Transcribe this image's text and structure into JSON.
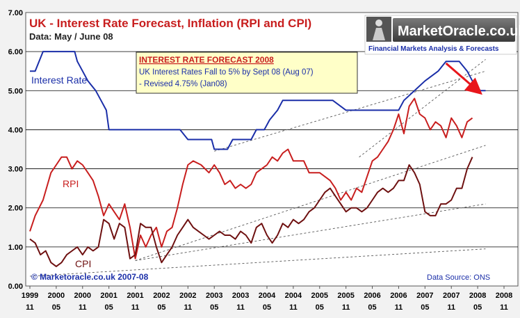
{
  "chart_data": {
    "type": "line",
    "title": "UK - Interest Rate Forecast, Inflation (RPI and CPI)",
    "subtitle": "Data: May / June 08",
    "ylim": [
      0,
      7
    ],
    "y_ticks": [
      "0.00",
      "1.00",
      "2.00",
      "3.00",
      "4.00",
      "5.00",
      "6.00",
      "7.00"
    ],
    "x_ticks": [
      {
        "top": "1999",
        "bottom": "11"
      },
      {
        "top": "2000",
        "bottom": "05"
      },
      {
        "top": "2000",
        "bottom": "11"
      },
      {
        "top": "2001",
        "bottom": "05"
      },
      {
        "top": "2001",
        "bottom": "11"
      },
      {
        "top": "2002",
        "bottom": "05"
      },
      {
        "top": "2002",
        "bottom": "11"
      },
      {
        "top": "2003",
        "bottom": "05"
      },
      {
        "top": "2003",
        "bottom": "11"
      },
      {
        "top": "2004",
        "bottom": "05"
      },
      {
        "top": "2004",
        "bottom": "11"
      },
      {
        "top": "2005",
        "bottom": "05"
      },
      {
        "top": "2005",
        "bottom": "11"
      },
      {
        "top": "2006",
        "bottom": "05"
      },
      {
        "top": "2006",
        "bottom": "11"
      },
      {
        "top": "2007",
        "bottom": "05"
      },
      {
        "top": "2007",
        "bottom": "11"
      },
      {
        "top": "2008",
        "bottom": "05"
      },
      {
        "top": "2008",
        "bottom": "11"
      }
    ],
    "grid": "horizontal",
    "series": [
      {
        "name": "Interest Rate",
        "color": "#1a2ea8",
        "points": [
          [
            0,
            5.5
          ],
          [
            0.2,
            5.5
          ],
          [
            0.5,
            6.0
          ],
          [
            1.7,
            6.0
          ],
          [
            1.8,
            5.75
          ],
          [
            2.0,
            5.5
          ],
          [
            2.2,
            5.25
          ],
          [
            2.5,
            5.0
          ],
          [
            2.7,
            4.75
          ],
          [
            2.9,
            4.5
          ],
          [
            3.0,
            4.0
          ],
          [
            5.7,
            4.0
          ],
          [
            6.0,
            3.75
          ],
          [
            6.9,
            3.75
          ],
          [
            7.0,
            3.5
          ],
          [
            7.5,
            3.5
          ],
          [
            7.7,
            3.75
          ],
          [
            8.4,
            3.75
          ],
          [
            8.6,
            4.0
          ],
          [
            8.9,
            4.0
          ],
          [
            9.1,
            4.25
          ],
          [
            9.4,
            4.5
          ],
          [
            9.6,
            4.75
          ],
          [
            11.0,
            4.75
          ],
          [
            11.5,
            4.75
          ],
          [
            12.0,
            4.5
          ],
          [
            14.0,
            4.5
          ],
          [
            14.2,
            4.75
          ],
          [
            14.6,
            5.0
          ],
          [
            15.0,
            5.25
          ],
          [
            15.5,
            5.5
          ],
          [
            15.8,
            5.75
          ],
          [
            16.3,
            5.75
          ],
          [
            16.6,
            5.5
          ],
          [
            16.8,
            5.25
          ],
          [
            17.1,
            5.0
          ],
          [
            17.3,
            5.0
          ]
        ]
      },
      {
        "name": "RPI",
        "color": "#c81e1e",
        "points": [
          [
            0,
            1.4
          ],
          [
            0.2,
            1.8
          ],
          [
            0.5,
            2.2
          ],
          [
            0.8,
            2.9
          ],
          [
            1.0,
            3.1
          ],
          [
            1.2,
            3.3
          ],
          [
            1.4,
            3.3
          ],
          [
            1.6,
            3.0
          ],
          [
            1.8,
            3.2
          ],
          [
            2.0,
            3.1
          ],
          [
            2.2,
            2.9
          ],
          [
            2.4,
            2.7
          ],
          [
            2.6,
            2.3
          ],
          [
            2.8,
            1.8
          ],
          [
            3.0,
            2.1
          ],
          [
            3.2,
            1.9
          ],
          [
            3.4,
            1.7
          ],
          [
            3.6,
            2.1
          ],
          [
            3.8,
            1.5
          ],
          [
            4.0,
            0.7
          ],
          [
            4.2,
            1.3
          ],
          [
            4.4,
            1.0
          ],
          [
            4.6,
            1.3
          ],
          [
            4.8,
            1.5
          ],
          [
            5.0,
            1.0
          ],
          [
            5.2,
            1.4
          ],
          [
            5.4,
            1.5
          ],
          [
            5.6,
            2.0
          ],
          [
            5.8,
            2.6
          ],
          [
            6.0,
            3.1
          ],
          [
            6.2,
            3.2
          ],
          [
            6.5,
            3.1
          ],
          [
            6.8,
            2.9
          ],
          [
            7.0,
            3.1
          ],
          [
            7.2,
            2.9
          ],
          [
            7.4,
            2.6
          ],
          [
            7.6,
            2.7
          ],
          [
            7.8,
            2.5
          ],
          [
            8.0,
            2.6
          ],
          [
            8.2,
            2.5
          ],
          [
            8.4,
            2.6
          ],
          [
            8.6,
            2.9
          ],
          [
            8.8,
            3.0
          ],
          [
            9.0,
            3.1
          ],
          [
            9.2,
            3.3
          ],
          [
            9.4,
            3.2
          ],
          [
            9.6,
            3.4
          ],
          [
            9.8,
            3.5
          ],
          [
            10.0,
            3.2
          ],
          [
            10.4,
            3.2
          ],
          [
            10.6,
            2.9
          ],
          [
            11.0,
            2.9
          ],
          [
            11.2,
            2.8
          ],
          [
            11.4,
            2.7
          ],
          [
            11.6,
            2.5
          ],
          [
            11.8,
            2.2
          ],
          [
            12.0,
            2.4
          ],
          [
            12.2,
            2.2
          ],
          [
            12.4,
            2.5
          ],
          [
            12.6,
            2.4
          ],
          [
            12.8,
            2.8
          ],
          [
            13.0,
            3.2
          ],
          [
            13.2,
            3.3
          ],
          [
            13.4,
            3.5
          ],
          [
            13.6,
            3.7
          ],
          [
            13.8,
            4.0
          ],
          [
            14.0,
            4.4
          ],
          [
            14.2,
            3.9
          ],
          [
            14.4,
            4.6
          ],
          [
            14.6,
            4.8
          ],
          [
            14.8,
            4.4
          ],
          [
            15.0,
            4.3
          ],
          [
            15.2,
            4.0
          ],
          [
            15.4,
            4.2
          ],
          [
            15.6,
            4.1
          ],
          [
            15.8,
            3.8
          ],
          [
            16.0,
            4.3
          ],
          [
            16.2,
            4.1
          ],
          [
            16.4,
            3.8
          ],
          [
            16.6,
            4.2
          ],
          [
            16.8,
            4.3
          ]
        ]
      },
      {
        "name": "CPI",
        "color": "#6e1010",
        "points": [
          [
            0,
            1.2
          ],
          [
            0.2,
            1.1
          ],
          [
            0.4,
            0.8
          ],
          [
            0.6,
            0.9
          ],
          [
            0.8,
            0.6
          ],
          [
            1.0,
            0.5
          ],
          [
            1.2,
            0.6
          ],
          [
            1.4,
            0.8
          ],
          [
            1.6,
            0.9
          ],
          [
            1.8,
            1.0
          ],
          [
            2.0,
            0.8
          ],
          [
            2.2,
            1.0
          ],
          [
            2.4,
            0.9
          ],
          [
            2.6,
            1.0
          ],
          [
            2.8,
            1.7
          ],
          [
            3.0,
            1.6
          ],
          [
            3.2,
            1.2
          ],
          [
            3.4,
            1.6
          ],
          [
            3.6,
            1.5
          ],
          [
            3.8,
            0.7
          ],
          [
            4.0,
            0.8
          ],
          [
            4.2,
            1.6
          ],
          [
            4.4,
            1.5
          ],
          [
            4.6,
            1.5
          ],
          [
            4.8,
            1.0
          ],
          [
            5.0,
            0.6
          ],
          [
            5.2,
            0.8
          ],
          [
            5.4,
            1.0
          ],
          [
            5.6,
            1.3
          ],
          [
            5.8,
            1.5
          ],
          [
            6.0,
            1.7
          ],
          [
            6.2,
            1.5
          ],
          [
            6.4,
            1.4
          ],
          [
            6.6,
            1.3
          ],
          [
            6.8,
            1.2
          ],
          [
            7.0,
            1.3
          ],
          [
            7.2,
            1.4
          ],
          [
            7.4,
            1.3
          ],
          [
            7.6,
            1.3
          ],
          [
            7.8,
            1.2
          ],
          [
            8.0,
            1.4
          ],
          [
            8.2,
            1.3
          ],
          [
            8.4,
            1.1
          ],
          [
            8.6,
            1.5
          ],
          [
            8.8,
            1.6
          ],
          [
            9.0,
            1.3
          ],
          [
            9.2,
            1.1
          ],
          [
            9.4,
            1.3
          ],
          [
            9.6,
            1.6
          ],
          [
            9.8,
            1.5
          ],
          [
            10.0,
            1.7
          ],
          [
            10.2,
            1.6
          ],
          [
            10.4,
            1.7
          ],
          [
            10.6,
            1.9
          ],
          [
            10.8,
            2.0
          ],
          [
            11.0,
            2.2
          ],
          [
            11.2,
            2.4
          ],
          [
            11.4,
            2.5
          ],
          [
            11.6,
            2.3
          ],
          [
            11.8,
            2.1
          ],
          [
            12.0,
            1.9
          ],
          [
            12.2,
            2.0
          ],
          [
            12.4,
            2.0
          ],
          [
            12.6,
            1.9
          ],
          [
            12.8,
            2.0
          ],
          [
            13.0,
            2.2
          ],
          [
            13.2,
            2.4
          ],
          [
            13.4,
            2.5
          ],
          [
            13.6,
            2.4
          ],
          [
            13.8,
            2.5
          ],
          [
            14.0,
            2.7
          ],
          [
            14.2,
            2.7
          ],
          [
            14.4,
            3.1
          ],
          [
            14.6,
            2.9
          ],
          [
            14.8,
            2.6
          ],
          [
            15.0,
            1.9
          ],
          [
            15.2,
            1.8
          ],
          [
            15.4,
            1.8
          ],
          [
            15.6,
            2.1
          ],
          [
            15.8,
            2.1
          ],
          [
            16.0,
            2.2
          ],
          [
            16.2,
            2.5
          ],
          [
            16.4,
            2.5
          ],
          [
            16.6,
            3.0
          ],
          [
            16.8,
            3.3
          ]
        ]
      }
    ],
    "trendlines": [
      {
        "from": [
          0,
          0.25
        ],
        "to": [
          17.3,
          0.95
        ]
      },
      {
        "from": [
          4,
          0.65
        ],
        "to": [
          17.3,
          2.1
        ]
      },
      {
        "from": [
          4,
          0.65
        ],
        "to": [
          17.3,
          3.6
        ]
      },
      {
        "from": [
          7.0,
          3.45
        ],
        "to": [
          17.3,
          5.5
        ]
      },
      {
        "from": [
          12.5,
          3.3
        ],
        "to": [
          17.3,
          5.8
        ]
      }
    ],
    "forecast_arrow": {
      "from": [
        15.8,
        5.7
      ],
      "to": [
        17.0,
        5.0
      ],
      "color": "#e8161b"
    },
    "series_labels": {
      "interest_rate": "Interest Rate",
      "rpi": "RPI",
      "cpi": "CPI"
    },
    "annotation_box": {
      "title": "INTEREST RATE FORECAST 2008",
      "line1": "UK Interest Rates Fall to 5% by Sept 08 (Aug 07)",
      "line2": "- Revised 4.75% (Jan08)"
    },
    "copyright": "© Marketoracle.co.uk 2007-08",
    "data_source": "Data Source: ONS"
  },
  "logo": {
    "name": "MarketOracle.co.uk",
    "tagline": "Financial Markets Analysis & Forecasts"
  }
}
